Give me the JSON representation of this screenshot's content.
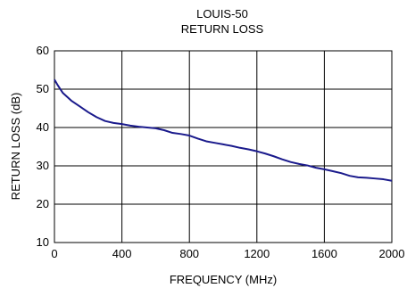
{
  "chart_data": {
    "type": "line",
    "title": "LOUIS-50",
    "subtitle": "RETURN LOSS",
    "xlabel": "FREQUENCY (MHz)",
    "ylabel": "RETURN LOSS (dB)",
    "xlim": [
      0,
      2000
    ],
    "ylim": [
      10,
      60
    ],
    "xticks": [
      0,
      400,
      800,
      1200,
      1600,
      2000
    ],
    "yticks": [
      10,
      20,
      30,
      40,
      50,
      60
    ],
    "grid": true,
    "series": [
      {
        "color": "#1a1a8c",
        "x": [
          0,
          20,
          50,
          100,
          150,
          200,
          250,
          300,
          350,
          400,
          450,
          500,
          550,
          600,
          650,
          700,
          750,
          800,
          850,
          900,
          950,
          1000,
          1050,
          1100,
          1150,
          1200,
          1250,
          1300,
          1350,
          1400,
          1450,
          1500,
          1550,
          1600,
          1650,
          1700,
          1750,
          1800,
          1850,
          1900,
          1950,
          2000
        ],
        "y": [
          52.5,
          51.0,
          49.0,
          47.0,
          45.5,
          44.0,
          42.7,
          41.7,
          41.2,
          40.9,
          40.5,
          40.2,
          40.0,
          39.8,
          39.3,
          38.6,
          38.3,
          37.9,
          37.1,
          36.4,
          36.0,
          35.6,
          35.2,
          34.7,
          34.3,
          33.8,
          33.2,
          32.5,
          31.7,
          31.0,
          30.5,
          30.1,
          29.5,
          29.1,
          28.6,
          28.1,
          27.4,
          27.0,
          26.9,
          26.7,
          26.5,
          26.1
        ]
      }
    ]
  }
}
